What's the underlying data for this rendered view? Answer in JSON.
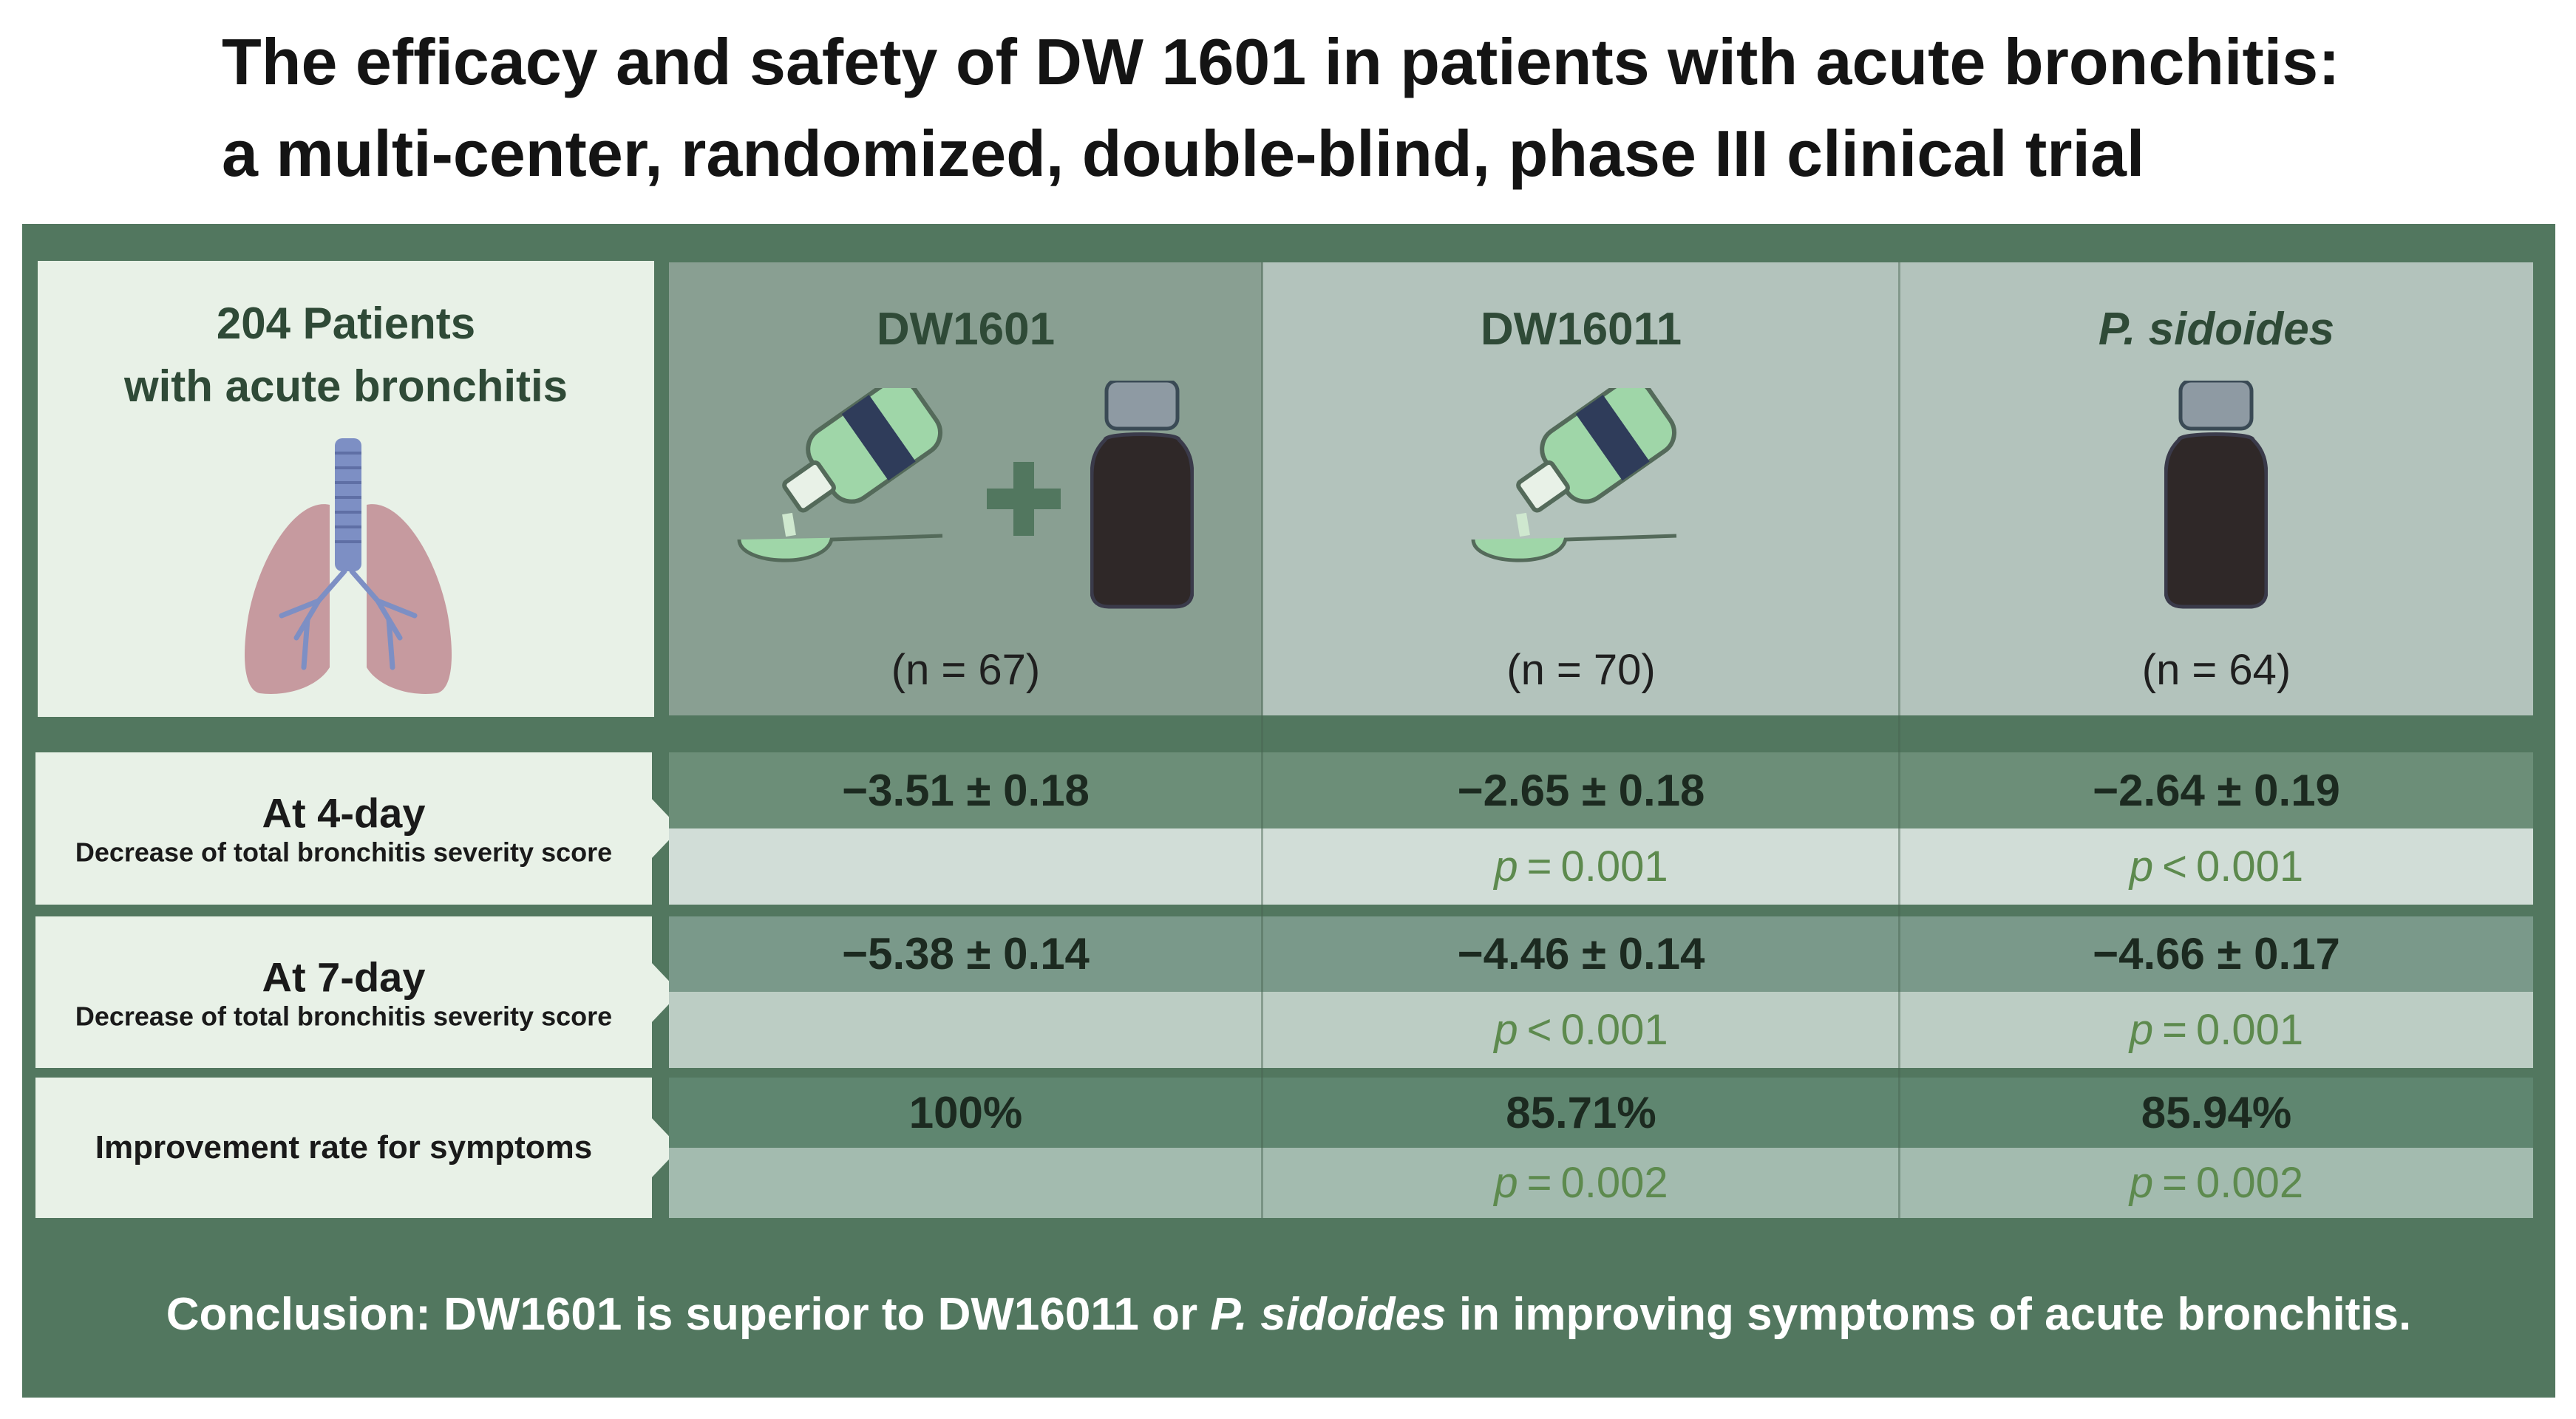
{
  "title": {
    "line1": "The efficacy and safety of DW 1601 in patients with acute bronchitis:",
    "line2": "a multi-center, randomized, double-blind, phase III clinical trial"
  },
  "patients": {
    "line1": "204 Patients",
    "line2": "with acute bronchitis",
    "icon": "lungs-icon"
  },
  "groups": [
    {
      "name": "DW1601",
      "n": "(n = 67)",
      "icons": [
        "syrup-bottle-pouring-icon",
        "plus-icon",
        "dark-bottle-icon"
      ]
    },
    {
      "name": "DW16011",
      "n": "(n = 70)",
      "icons": [
        "syrup-bottle-pouring-icon"
      ]
    },
    {
      "name": "P. sidoides",
      "n": "(n = 64)",
      "icons": [
        "dark-bottle-icon"
      ]
    }
  ],
  "rows": [
    {
      "label": "At 4-day",
      "sublabel": "Decrease of total bronchitis severity score",
      "values": [
        "−3.51  ±  0.18",
        "−2.65  ±  0.18",
        "−2.64  ±  0.19"
      ],
      "p_sym": [
        "",
        "=",
        "<"
      ],
      "p_val": [
        "",
        "0.001",
        "0.001"
      ]
    },
    {
      "label": "At 7-day",
      "sublabel": "Decrease of total bronchitis severity score",
      "values": [
        "−5.38  ±  0.14",
        "−4.46  ±  0.14",
        "−4.66  ±  0.17"
      ],
      "p_sym": [
        "",
        "<",
        "="
      ],
      "p_val": [
        "",
        "0.001",
        "0.001"
      ]
    },
    {
      "label": "Improvement rate for symptoms",
      "sublabel": "",
      "values": [
        "100%",
        "85.71%",
        "85.94%"
      ],
      "p_sym": [
        "",
        "=",
        "="
      ],
      "p_val": [
        "",
        "0.002",
        "0.002"
      ]
    }
  ],
  "p_letter": "p",
  "conclusion": {
    "part1": "Conclusion: DW1601 is superior to DW16011 or ",
    "italic": "P. sidoides",
    "part2": " in improving symptoms of acute bronchitis."
  },
  "colors": {
    "panel": "#52775f",
    "light_box": "#e8f1e7",
    "col_highlight": "#899f92",
    "col_normal": "#b3c3bc",
    "pvalue_text": "#5d8a4e",
    "bottle_dark": "#2f2828",
    "bottle_cap": "#8e9aa3",
    "bottle_band": "#2f3c5a",
    "syrup_green": "#9fd6a8"
  }
}
